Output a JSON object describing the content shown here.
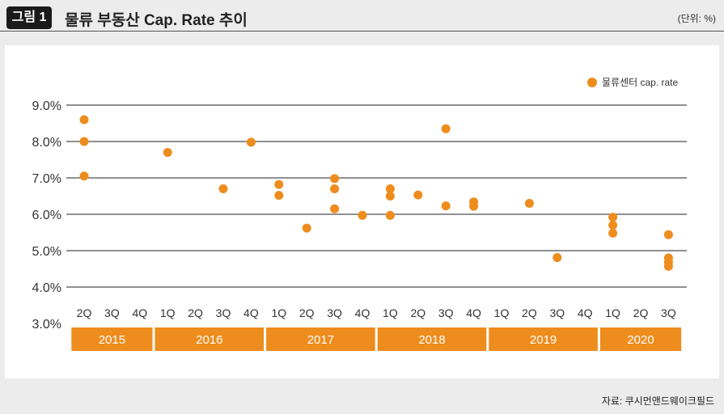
{
  "header": {
    "badge": "그림 1",
    "title": "물류 부동산 Cap. Rate 추이",
    "unit": "(단위: %)"
  },
  "source": "자료: 쿠시먼앤드웨이크필드",
  "colors": {
    "marker": "#ee8c1d",
    "year_band": "#ee8c1d",
    "gridline": "#222222"
  },
  "chart_data": {
    "type": "scatter",
    "legend": {
      "label": "물류센터 cap. rate",
      "placement": "top-right"
    },
    "y_ticks": [
      "9.0%",
      "8.0%",
      "7.0%",
      "6.0%",
      "5.0%",
      "4.0%",
      "3.0%"
    ],
    "ylim": [
      3.0,
      9.0
    ],
    "grid": true,
    "quarters": [
      "2Q",
      "3Q",
      "4Q",
      "1Q",
      "2Q",
      "3Q",
      "4Q",
      "1Q",
      "2Q",
      "3Q",
      "4Q",
      "1Q",
      "2Q",
      "3Q",
      "4Q",
      "1Q",
      "2Q",
      "3Q",
      "4Q",
      "1Q",
      "2Q",
      "3Q"
    ],
    "years": [
      {
        "label": "2015",
        "span": [
          0,
          2
        ]
      },
      {
        "label": "2016",
        "span": [
          3,
          6
        ]
      },
      {
        "label": "2017",
        "span": [
          7,
          10
        ]
      },
      {
        "label": "2018",
        "span": [
          11,
          14
        ]
      },
      {
        "label": "2019",
        "span": [
          15,
          18
        ]
      },
      {
        "label": "2020",
        "span": [
          19,
          21
        ]
      }
    ],
    "series": [
      {
        "points": [
          {
            "q": 0,
            "y": 8.6
          },
          {
            "q": 0,
            "y": 8.0
          },
          {
            "q": 0,
            "y": 7.05
          },
          {
            "q": 3,
            "y": 7.7
          },
          {
            "q": 5,
            "y": 6.7
          },
          {
            "q": 6,
            "y": 7.98
          },
          {
            "q": 7,
            "y": 6.82
          },
          {
            "q": 7,
            "y": 6.52
          },
          {
            "q": 8,
            "y": 5.62
          },
          {
            "q": 9,
            "y": 6.98
          },
          {
            "q": 9,
            "y": 6.7
          },
          {
            "q": 9,
            "y": 6.15
          },
          {
            "q": 10,
            "y": 5.97
          },
          {
            "q": 11,
            "y": 6.7
          },
          {
            "q": 11,
            "y": 6.5
          },
          {
            "q": 11,
            "y": 5.97
          },
          {
            "q": 12,
            "y": 6.53
          },
          {
            "q": 13,
            "y": 8.35
          },
          {
            "q": 13,
            "y": 6.23
          },
          {
            "q": 14,
            "y": 6.34
          },
          {
            "q": 14,
            "y": 6.22
          },
          {
            "q": 16,
            "y": 6.3
          },
          {
            "q": 17,
            "y": 4.81
          },
          {
            "q": 19,
            "y": 5.92
          },
          {
            "q": 19,
            "y": 5.7
          },
          {
            "q": 19,
            "y": 5.48
          },
          {
            "q": 21,
            "y": 5.44
          },
          {
            "q": 21,
            "y": 4.8
          },
          {
            "q": 21,
            "y": 4.68
          },
          {
            "q": 21,
            "y": 4.57
          }
        ]
      }
    ]
  }
}
